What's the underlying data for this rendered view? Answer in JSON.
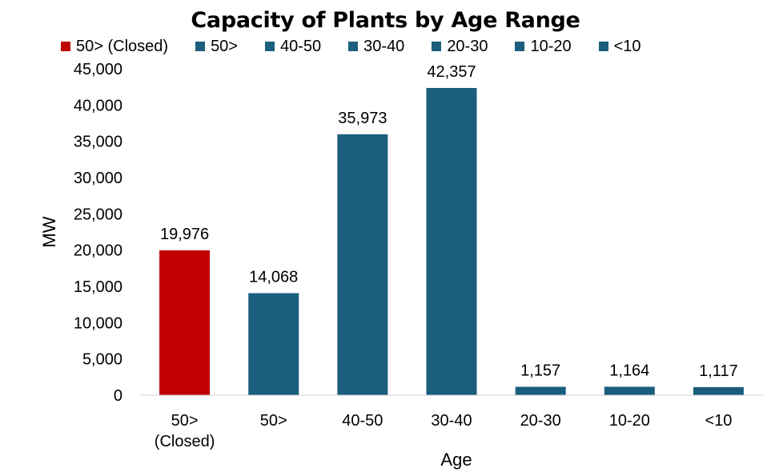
{
  "chart_data": {
    "type": "bar",
    "title": "Capacity of Plants by Age Range",
    "xlabel": "Age",
    "ylabel": "MW",
    "categories": [
      "50> (Closed)",
      "50>",
      "40-50",
      "30-40",
      "20-30",
      "10-20",
      "<10"
    ],
    "category_lines": [
      [
        "50>",
        "(Closed)"
      ],
      [
        "50>"
      ],
      [
        "40-50"
      ],
      [
        "30-40"
      ],
      [
        "20-30"
      ],
      [
        "10-20"
      ],
      [
        "<10"
      ]
    ],
    "values": [
      19976,
      14068,
      35973,
      42357,
      1157,
      1164,
      1117
    ],
    "data_labels": [
      "19,976",
      "14,068",
      "35,973",
      "42,357",
      "1,157",
      "1,164",
      "1,117"
    ],
    "colors": [
      "#C00000",
      "#1B5E7D",
      "#1B5E7D",
      "#1B5E7D",
      "#1B5E7D",
      "#1B5E7D",
      "#1B5E7D"
    ],
    "ylim": [
      0,
      45000
    ],
    "yticks": [
      0,
      5000,
      10000,
      15000,
      20000,
      25000,
      30000,
      35000,
      40000,
      45000
    ],
    "ytick_labels": [
      "0",
      "5,000",
      "10,000",
      "15,000",
      "20,000",
      "25,000",
      "30,000",
      "35,000",
      "40,000",
      "45,000"
    ],
    "grid": false,
    "legend_position": "top",
    "legend": [
      {
        "label": "50> (Closed)",
        "color": "#C00000"
      },
      {
        "label": "50>",
        "color": "#1B5E7D"
      },
      {
        "label": "40-50",
        "color": "#1B5E7D"
      },
      {
        "label": "30-40",
        "color": "#1B5E7D"
      },
      {
        "label": "20-30",
        "color": "#1B5E7D"
      },
      {
        "label": "10-20",
        "color": "#1B5E7D"
      },
      {
        "label": "<10",
        "color": "#1B5E7D"
      }
    ]
  }
}
